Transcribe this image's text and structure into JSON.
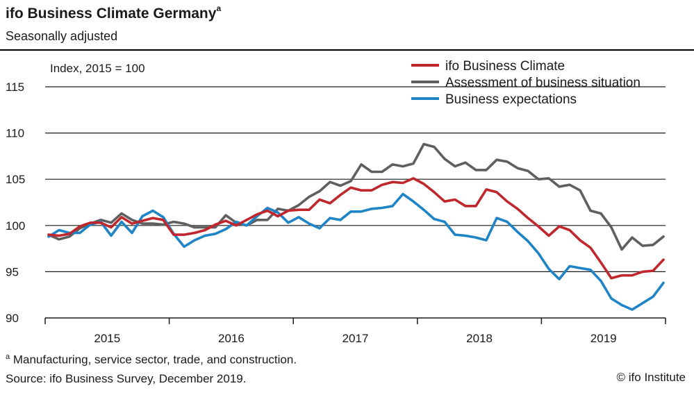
{
  "header": {
    "title": "ifo Business Climate Germany",
    "title_marker": "a",
    "subtitle": "Seasonally adjusted"
  },
  "footer": {
    "footnote_marker": "a",
    "footnote": " Manufacturing, service sector, trade, and construction.",
    "source": "Source: ifo Business Survey, December 2019.",
    "copyright": "© ifo Institute"
  },
  "chart_data": {
    "type": "line",
    "index_note": "Index, 2015 = 100",
    "ylim": [
      90,
      115
    ],
    "yticks": [
      90,
      95,
      100,
      105,
      110,
      115
    ],
    "year_labels": [
      "2015",
      "2016",
      "2017",
      "2018",
      "2019"
    ],
    "x_start": "2015-01",
    "x_end": "2019-12",
    "grid": "horizontal",
    "legend_position": "top-right",
    "series": [
      {
        "name": "ifo Business Climate",
        "color": "#c0272d",
        "values": [
          99.0,
          98.9,
          99.1,
          99.9,
          100.3,
          100.3,
          99.8,
          100.9,
          100.2,
          100.5,
          100.8,
          100.6,
          99.0,
          99.0,
          99.2,
          99.5,
          100.1,
          100.5,
          100.0,
          100.6,
          101.2,
          101.6,
          101.0,
          101.6,
          101.7,
          101.7,
          102.8,
          102.4,
          103.3,
          104.1,
          103.8,
          103.8,
          104.4,
          104.7,
          104.6,
          105.1,
          104.5,
          103.6,
          102.6,
          102.8,
          102.1,
          102.1,
          103.9,
          103.6,
          102.6,
          101.8,
          100.8,
          99.9,
          98.9,
          99.9,
          99.5,
          98.4,
          97.6,
          96.0,
          94.3,
          94.6,
          94.6,
          95.0,
          95.1,
          96.3
        ]
      },
      {
        "name": "Assessment of business situation",
        "color": "#5f5f5f",
        "values": [
          99.0,
          98.5,
          98.8,
          99.7,
          100.2,
          100.6,
          100.3,
          101.3,
          100.6,
          100.2,
          100.2,
          100.1,
          100.4,
          100.2,
          99.8,
          99.8,
          99.8,
          101.1,
          100.3,
          100.0,
          100.6,
          100.6,
          101.8,
          101.6,
          102.2,
          103.1,
          103.7,
          104.7,
          104.3,
          104.8,
          106.6,
          105.8,
          105.8,
          106.6,
          106.4,
          106.7,
          108.8,
          108.5,
          107.2,
          106.4,
          106.8,
          106.0,
          106.0,
          107.1,
          106.9,
          106.2,
          105.9,
          105.0,
          105.1,
          104.2,
          104.4,
          103.8,
          101.6,
          101.3,
          99.8,
          97.4,
          98.7,
          97.8,
          97.9,
          98.8
        ]
      },
      {
        "name": "Business expectations",
        "color": "#1e84c6",
        "values": [
          98.8,
          99.5,
          99.2,
          99.2,
          100.1,
          100.4,
          98.9,
          100.4,
          99.2,
          101.0,
          101.6,
          100.9,
          99.1,
          97.7,
          98.4,
          98.9,
          99.1,
          99.6,
          100.4,
          100.0,
          101.0,
          101.9,
          101.4,
          100.3,
          100.9,
          100.2,
          99.7,
          100.8,
          100.6,
          101.5,
          101.5,
          101.8,
          101.9,
          102.1,
          103.4,
          102.6,
          101.7,
          100.7,
          100.4,
          99.0,
          98.9,
          98.7,
          98.4,
          100.8,
          100.4,
          99.3,
          98.3,
          97.0,
          95.3,
          94.2,
          95.6,
          95.4,
          95.2,
          94.0,
          92.1,
          91.4,
          90.9,
          91.6,
          92.3,
          93.8
        ]
      }
    ]
  }
}
